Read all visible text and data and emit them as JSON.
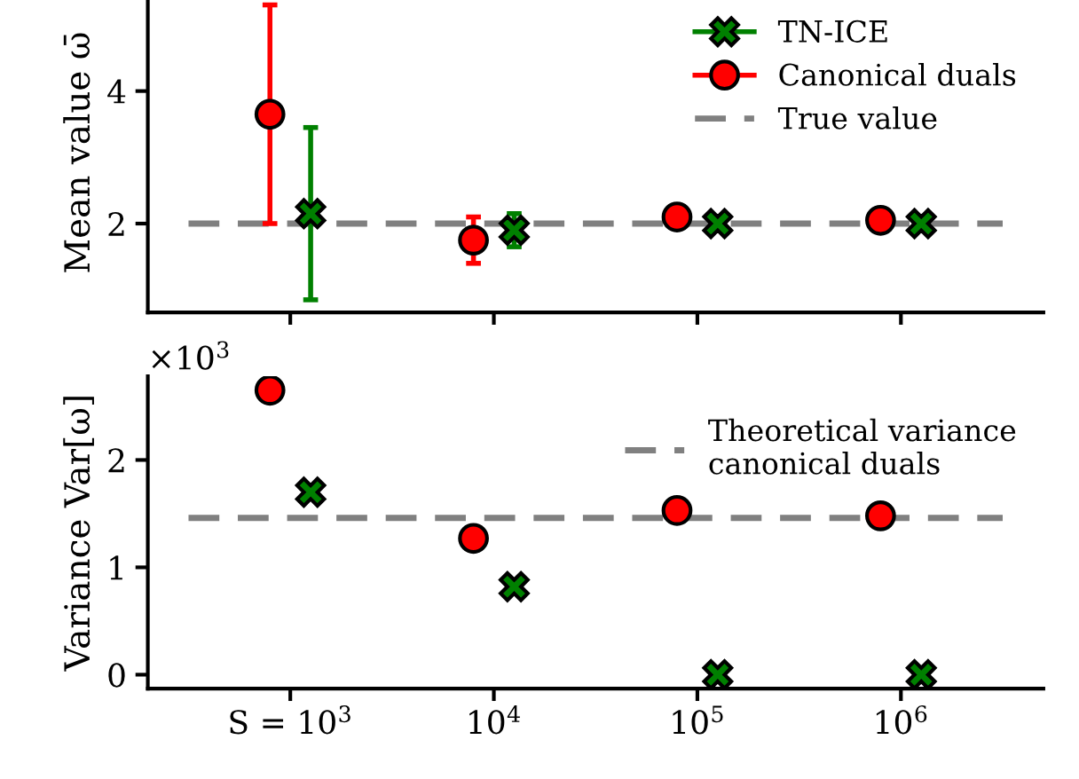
{
  "chart_data": [
    {
      "type": "scatter",
      "ylabel": "Mean value ω̄",
      "categories": [
        null,
        null,
        null,
        null
      ],
      "ylim": [
        0.66,
        5.48
      ],
      "yticks": [
        2,
        4
      ],
      "tick_labels": "y",
      "legend": "top right",
      "grid": false,
      "series": [
        {
          "name": "TN-ICE",
          "color": "#008000",
          "marker": "cross",
          "values": [
            2.15,
            1.9,
            2.0,
            2.0
          ],
          "errors": [
            1.3,
            0.25,
            null,
            null
          ]
        },
        {
          "name": "Canonical duals",
          "color": "#ff0000",
          "marker": "circle",
          "values": [
            3.65,
            1.75,
            2.1,
            2.05
          ],
          "errors": [
            1.65,
            0.35,
            null,
            null
          ]
        }
      ],
      "ref_lines": [
        {
          "axis": "y",
          "value": 2,
          "label": "True value",
          "color": "#808080",
          "line_style": "dashed"
        }
      ]
    },
    {
      "type": "scatter",
      "ylabel": "Variance Var[ω]",
      "categories": [
        "S = 10$^{3}$",
        "10$^{4}$",
        "10$^{5}$",
        "10$^{6}$"
      ],
      "ylim": [
        -0.13,
        2.78
      ],
      "yticks": [
        0,
        1,
        2
      ],
      "legend": "top right",
      "grid": false,
      "annotations": [
        "×10$^{3}$"
      ],
      "series": [
        {
          "color": "#008000",
          "marker": "cross",
          "values": [
            1.7,
            0.82,
            0,
            0
          ]
        },
        {
          "color": "#ff0000",
          "marker": "circle",
          "values": [
            2.65,
            1.27,
            1.53,
            1.48
          ]
        }
      ],
      "ref_lines": [
        {
          "axis": "y",
          "value": 1.46,
          "label": "Theoretical variance\ncanonical duals",
          "color": "#808080",
          "line_style": "dashed"
        }
      ]
    }
  ]
}
